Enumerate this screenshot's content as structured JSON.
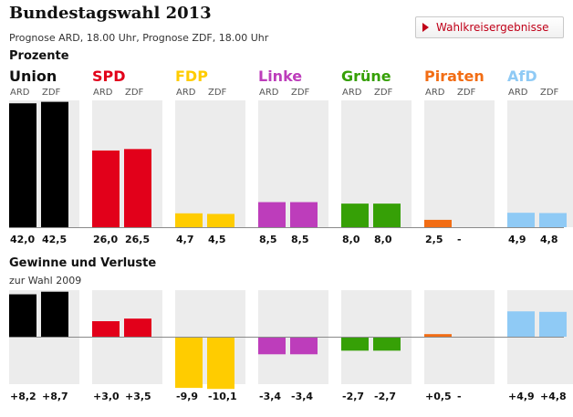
{
  "header": {
    "title": "Bundestagswahl 2013",
    "subtitle": "Prognose ARD, 18.00 Uhr, Prognose ZDF, 18.00 Uhr",
    "button_label": "Wahlkreisergebnisse"
  },
  "sections": {
    "percent_title": "Prozente",
    "change_title": "Gewinne und Verluste",
    "change_subtitle": "zur Wahl 2009"
  },
  "chart_data": [
    {
      "type": "bar",
      "title": "Prozente",
      "categories": [
        "Union",
        "SPD",
        "FDP",
        "Linke",
        "Grüne",
        "Piraten",
        "AfD"
      ],
      "colors": [
        "#000000",
        "#e2001a",
        "#ffcc00",
        "#bd3dbb",
        "#36a006",
        "#f26d14",
        "#8fcaf5"
      ],
      "series": [
        {
          "name": "ARD",
          "values": [
            42.0,
            26.0,
            4.7,
            8.5,
            8.0,
            2.5,
            4.9
          ],
          "labels": [
            "42,0",
            "26,0",
            "4,7",
            "8,5",
            "8,0",
            "2,5",
            "4,9"
          ]
        },
        {
          "name": "ZDF",
          "values": [
            42.5,
            26.5,
            4.5,
            8.5,
            8.0,
            null,
            4.8
          ],
          "labels": [
            "42,5",
            "26,5",
            "4,5",
            "8,5",
            "8,0",
            "-",
            "4,8"
          ]
        }
      ],
      "ylim": [
        0,
        43
      ]
    },
    {
      "type": "bar",
      "title": "Gewinne und Verluste",
      "subtitle": "zur Wahl 2009",
      "categories": [
        "Union",
        "SPD",
        "FDP",
        "Linke",
        "Grüne",
        "Piraten",
        "AfD"
      ],
      "colors": [
        "#000000",
        "#e2001a",
        "#ffcc00",
        "#bd3dbb",
        "#36a006",
        "#f26d14",
        "#8fcaf5"
      ],
      "series": [
        {
          "name": "ARD",
          "values": [
            8.2,
            3.0,
            -9.9,
            -3.4,
            -2.7,
            0.5,
            4.9
          ],
          "labels": [
            "+8,2",
            "+3,0",
            "-9,9",
            "-3,4",
            "-2,7",
            "+0,5",
            "+4,9"
          ]
        },
        {
          "name": "ZDF",
          "values": [
            8.7,
            3.5,
            -10.1,
            -3.4,
            -2.7,
            null,
            4.8
          ],
          "labels": [
            "+8,7",
            "+3,5",
            "-10,1",
            "-3,4",
            "-2,7",
            "-",
            "+4,8"
          ]
        }
      ],
      "ylim": [
        -10.1,
        9.0
      ]
    }
  ]
}
